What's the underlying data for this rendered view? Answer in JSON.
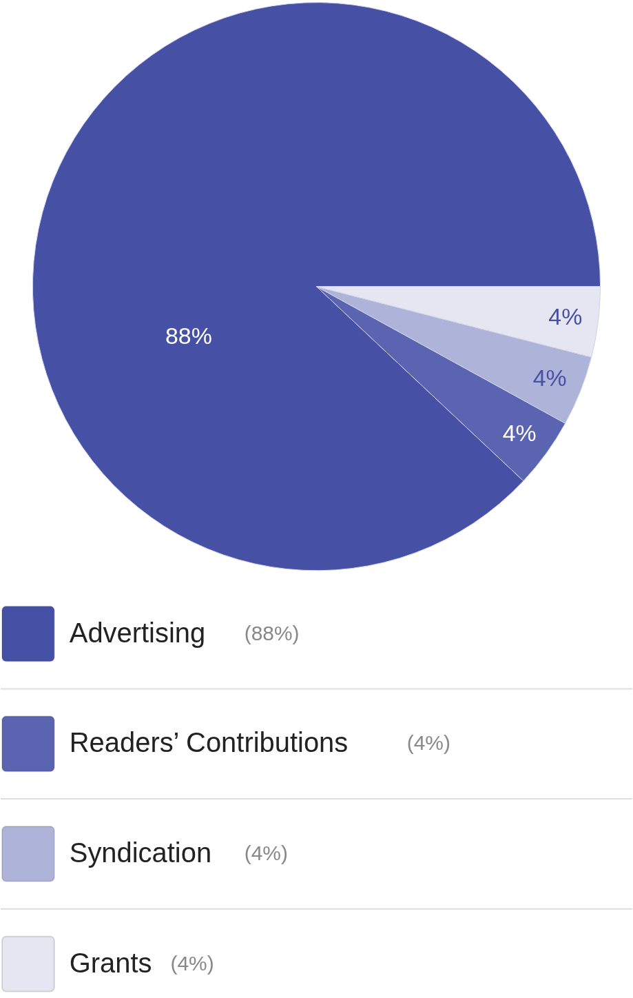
{
  "chart_data": {
    "type": "pie",
    "categories": [
      "Advertising",
      "Readers’ Contributions",
      "Syndication",
      "Grants"
    ],
    "values": [
      88,
      4,
      4,
      4
    ],
    "colors": [
      "#4651a5",
      "#5a64b0",
      "#aeb3da",
      "#e6e6f2"
    ],
    "value_labels": [
      "88%",
      "4%",
      "4%",
      "4%"
    ],
    "annotations": [
      "(88%)",
      "(4%)",
      "(4%)",
      "(4%)"
    ],
    "legend": "bottom"
  }
}
